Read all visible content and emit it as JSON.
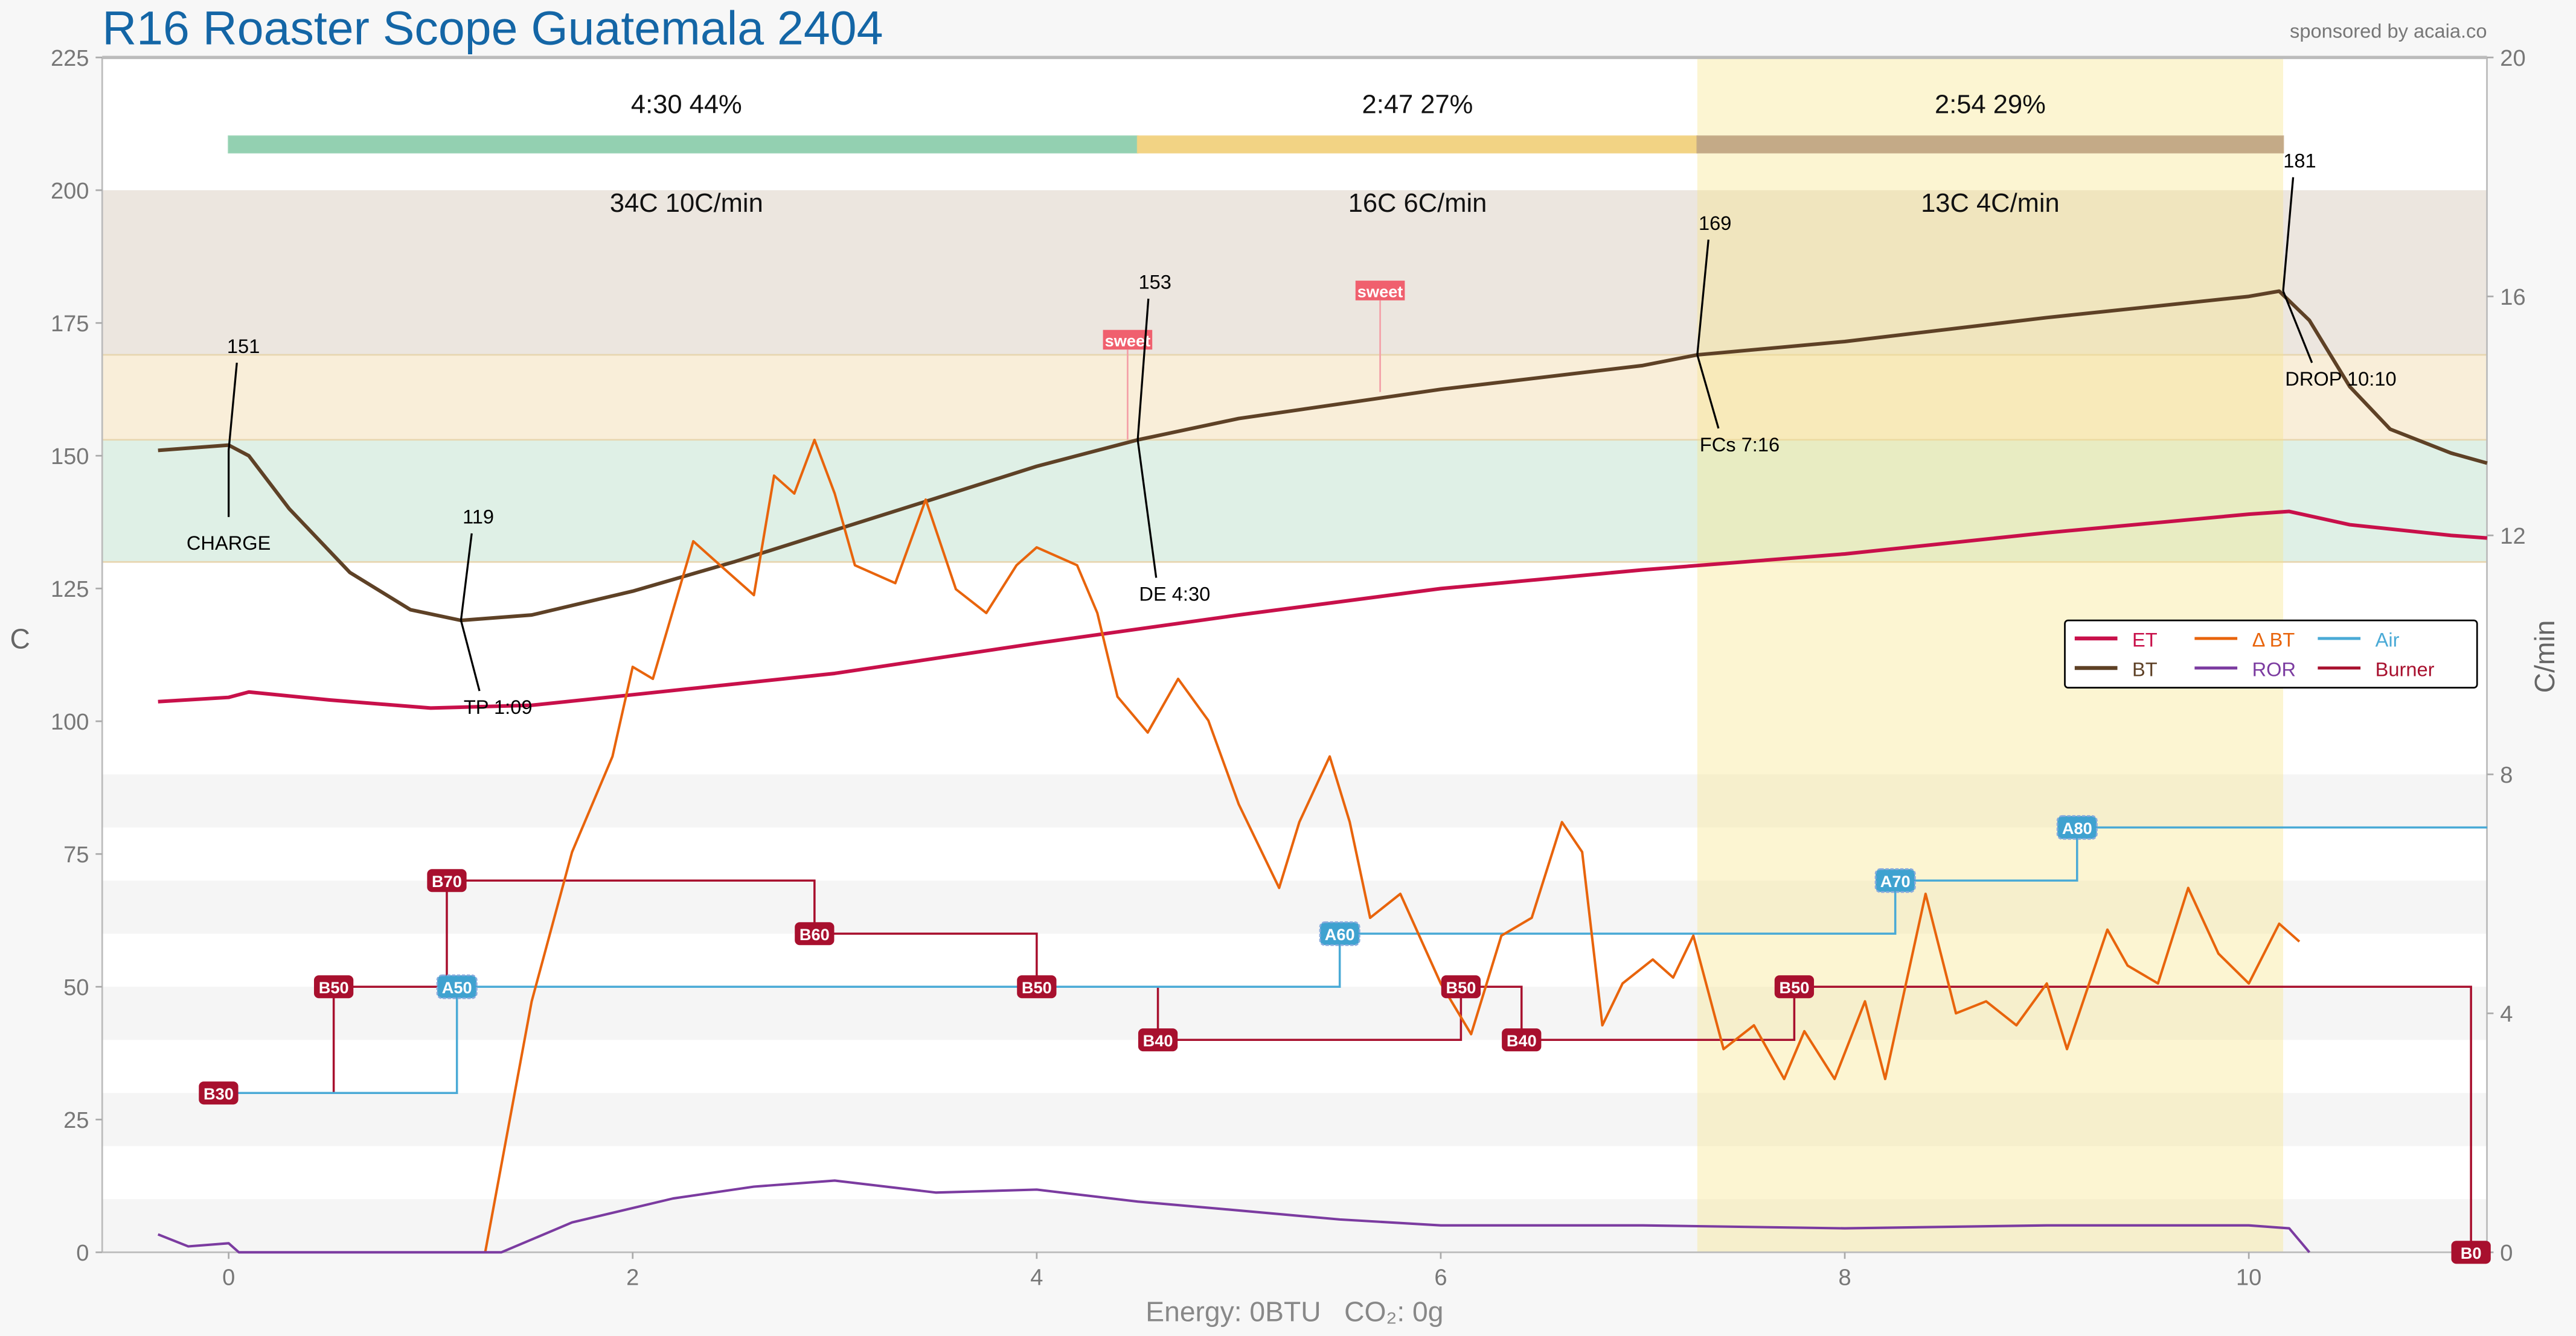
{
  "title": "R16 Roaster Scope Guatemala 2404",
  "sponsor": "sponsored by acaia.co",
  "footer": "Energy: 0BTU   CO₂: 0g",
  "colors": {
    "ET": "#c8104a",
    "BT": "#5e4126",
    "DBT": "#e8640c",
    "Air": "#4aaad6",
    "ROR": "#7b3ba0",
    "Burner": "#a8102e",
    "title": "#1466a6"
  },
  "chart_data": {
    "type": "line",
    "xlabel": "",
    "ylabel": "C",
    "y2label": "C/min",
    "xlim": [
      -0.62,
      11.18
    ],
    "ylim": [
      0,
      225
    ],
    "y2lim": [
      0,
      20
    ],
    "xticks": [
      0,
      2,
      4,
      6,
      8,
      10
    ],
    "yticks": [
      0,
      25,
      50,
      75,
      100,
      125,
      150,
      175,
      200,
      225
    ],
    "y2ticks": [
      0,
      4,
      8,
      12,
      16,
      20
    ],
    "legend": {
      "placement": "right",
      "entries": [
        "ET",
        "Δ BT",
        "Air",
        "BT",
        "ROR",
        "Burner"
      ]
    },
    "phases": [
      {
        "label": "4:30  44%",
        "stat": "34C  10C/min",
        "start": 0,
        "end": 4.5,
        "color": "#93d0b1"
      },
      {
        "label": "2:47  27%",
        "stat": "16C  6C/min",
        "start": 4.5,
        "end": 7.27,
        "color": "#f2d384"
      },
      {
        "label": "2:54  29%",
        "stat": "13C  4C/min",
        "start": 7.27,
        "end": 10.17,
        "color": "#c4aa87"
      }
    ],
    "bands": [
      {
        "from": 169,
        "to": 200,
        "color": "#ece6df"
      },
      {
        "from": 153,
        "to": 169,
        "color": "#f9eed9"
      },
      {
        "from": 130,
        "to": 153,
        "color": "#dff0e6"
      }
    ],
    "series": [
      {
        "name": "ET",
        "axis": "left",
        "points": [
          [
            -0.35,
            103.7
          ],
          [
            0,
            104.5
          ],
          [
            0.1,
            105.5
          ],
          [
            0.5,
            104
          ],
          [
            1,
            102.5
          ],
          [
            1.5,
            103
          ],
          [
            2,
            105
          ],
          [
            3,
            109
          ],
          [
            4,
            114.7
          ],
          [
            5,
            120
          ],
          [
            6,
            125
          ],
          [
            7,
            128.5
          ],
          [
            8,
            131.5
          ],
          [
            9,
            135.5
          ],
          [
            10,
            139
          ],
          [
            10.2,
            139.5
          ],
          [
            10.5,
            137
          ],
          [
            11,
            135
          ],
          [
            11.18,
            134.5
          ]
        ]
      },
      {
        "name": "BT",
        "axis": "left",
        "points": [
          [
            -0.35,
            151
          ],
          [
            0,
            152
          ],
          [
            0.1,
            150
          ],
          [
            0.3,
            140
          ],
          [
            0.6,
            128
          ],
          [
            0.9,
            121
          ],
          [
            1.15,
            119
          ],
          [
            1.5,
            120
          ],
          [
            2,
            124.5
          ],
          [
            2.5,
            130
          ],
          [
            3,
            136
          ],
          [
            3.5,
            142
          ],
          [
            4,
            148
          ],
          [
            4.5,
            153
          ],
          [
            5,
            157
          ],
          [
            6,
            162.5
          ],
          [
            7,
            167
          ],
          [
            7.27,
            169
          ],
          [
            8,
            171.5
          ],
          [
            9,
            176
          ],
          [
            10,
            180
          ],
          [
            10.15,
            181
          ],
          [
            10.3,
            175.5
          ],
          [
            10.5,
            163
          ],
          [
            10.7,
            155
          ],
          [
            11,
            150.5
          ],
          [
            11.18,
            148.6
          ]
        ]
      },
      {
        "name": "Δ BT",
        "axis": "right",
        "points": [
          [
            1.27,
            0
          ],
          [
            1.5,
            4.2
          ],
          [
            1.7,
            6.7
          ],
          [
            1.9,
            8.3
          ],
          [
            2,
            9.8
          ],
          [
            2.1,
            9.6
          ],
          [
            2.3,
            11.9
          ],
          [
            2.4,
            11.6
          ],
          [
            2.6,
            11
          ],
          [
            2.7,
            13
          ],
          [
            2.8,
            12.7
          ],
          [
            2.9,
            13.6
          ],
          [
            3.0,
            12.7
          ],
          [
            3.1,
            11.5
          ],
          [
            3.3,
            11.2
          ],
          [
            3.45,
            12.6
          ],
          [
            3.6,
            11.1
          ],
          [
            3.75,
            10.7
          ],
          [
            3.9,
            11.5
          ],
          [
            4,
            11.8
          ],
          [
            4.2,
            11.5
          ],
          [
            4.3,
            10.7
          ],
          [
            4.4,
            9.3
          ],
          [
            4.55,
            8.7
          ],
          [
            4.7,
            9.6
          ],
          [
            4.85,
            8.9
          ],
          [
            5.0,
            7.5
          ],
          [
            5.2,
            6.1
          ],
          [
            5.3,
            7.2
          ],
          [
            5.45,
            8.3
          ],
          [
            5.55,
            7.2
          ],
          [
            5.65,
            5.6
          ],
          [
            5.8,
            6
          ],
          [
            6.0,
            4.5
          ],
          [
            6.15,
            3.65
          ],
          [
            6.3,
            5.3
          ],
          [
            6.45,
            5.6
          ],
          [
            6.6,
            7.2
          ],
          [
            6.7,
            6.7
          ],
          [
            6.8,
            3.8
          ],
          [
            6.9,
            4.5
          ],
          [
            7.05,
            4.9
          ],
          [
            7.15,
            4.6
          ],
          [
            7.25,
            5.3
          ],
          [
            7.4,
            3.4
          ],
          [
            7.55,
            3.8
          ],
          [
            7.7,
            2.9
          ],
          [
            7.8,
            3.7
          ],
          [
            7.95,
            2.9
          ],
          [
            8.1,
            4.2
          ],
          [
            8.2,
            2.9
          ],
          [
            8.4,
            6
          ],
          [
            8.55,
            4
          ],
          [
            8.7,
            4.2
          ],
          [
            8.85,
            3.8
          ],
          [
            9,
            4.5
          ],
          [
            9.1,
            3.4
          ],
          [
            9.3,
            5.4
          ],
          [
            9.4,
            4.8
          ],
          [
            9.55,
            4.5
          ],
          [
            9.7,
            6.1
          ],
          [
            9.85,
            5
          ],
          [
            10.0,
            4.5
          ],
          [
            10.15,
            5.5
          ],
          [
            10.25,
            5.2
          ]
        ]
      },
      {
        "name": "ROR",
        "axis": "right",
        "points": [
          [
            -0.35,
            0.3
          ],
          [
            -0.2,
            0.1
          ],
          [
            0,
            0.15
          ],
          [
            0.05,
            0
          ],
          [
            1.35,
            0
          ],
          [
            1.7,
            0.5
          ],
          [
            2.2,
            0.9
          ],
          [
            2.6,
            1.1
          ],
          [
            3,
            1.2
          ],
          [
            3.5,
            1.0
          ],
          [
            4,
            1.05
          ],
          [
            4.5,
            0.85
          ],
          [
            5,
            0.7
          ],
          [
            5.5,
            0.55
          ],
          [
            6,
            0.45
          ],
          [
            7,
            0.45
          ],
          [
            8,
            0.4
          ],
          [
            9,
            0.45
          ],
          [
            10,
            0.45
          ],
          [
            10.2,
            0.4
          ],
          [
            10.3,
            0
          ]
        ]
      },
      {
        "name": "Burner",
        "axis": "left",
        "steps": [
          [
            -0.05,
            30
          ],
          [
            0.52,
            50
          ],
          [
            1.08,
            70
          ],
          [
            2.9,
            60
          ],
          [
            4.0,
            50
          ],
          [
            4.6,
            40
          ],
          [
            6.1,
            50
          ],
          [
            6.4,
            40
          ],
          [
            7.75,
            50
          ],
          [
            11.1,
            0
          ]
        ],
        "end": 11.1
      },
      {
        "name": "Air",
        "axis": "left",
        "steps": [
          [
            -0.05,
            30
          ],
          [
            1.13,
            50
          ],
          [
            5.5,
            60
          ],
          [
            8.25,
            70
          ],
          [
            9.15,
            80
          ]
        ],
        "end": 11.18
      }
    ],
    "markers": [
      {
        "series": "Burner",
        "labels": [
          "B30",
          "B50",
          "B70",
          "B60",
          "B50",
          "B40",
          "B50",
          "B40",
          "B50",
          "B0"
        ]
      },
      {
        "series": "Air",
        "labels": [
          "",
          "A50",
          "A60",
          "A70",
          "A80"
        ]
      }
    ],
    "events": [
      {
        "name": "CHARGE",
        "label": "CHARGE",
        "t": 0,
        "value": 151
      },
      {
        "name": "TP",
        "label": "TP 1:09",
        "t": 1.15,
        "value": 119
      },
      {
        "name": "DE",
        "label": "DE 4:30",
        "t": 4.5,
        "value": 153
      },
      {
        "name": "FCs",
        "label": "FCs 7:16",
        "t": 7.27,
        "value": 169
      },
      {
        "name": "DROP",
        "label": "DROP 10:10",
        "t": 10.17,
        "value": 181
      }
    ],
    "notes": [
      {
        "label": "sweet",
        "t": 4.45,
        "value": 153
      },
      {
        "label": "sweet",
        "t": 5.7,
        "value": 162
      }
    ]
  }
}
